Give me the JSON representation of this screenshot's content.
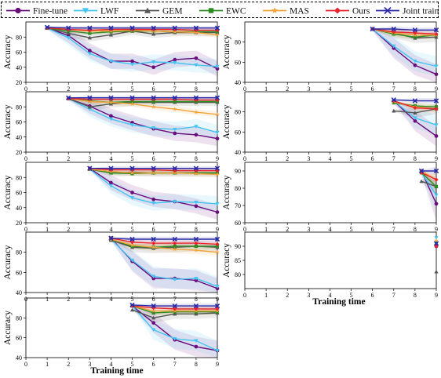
{
  "chart_data": {
    "type": "line",
    "legend": [
      {
        "name": "Fine-tune",
        "color": "#6a0c7c",
        "marker": "circle"
      },
      {
        "name": "LWF",
        "color": "#45c4f2",
        "marker": "triangle-down"
      },
      {
        "name": "GEM",
        "color": "#555555",
        "marker": "triangle-up"
      },
      {
        "name": "EWC",
        "color": "#2e8b22",
        "marker": "square"
      },
      {
        "name": "MAS",
        "color": "#f2a33a",
        "marker": "star"
      },
      {
        "name": "Ours",
        "color": "#e8232a",
        "marker": "diamond"
      },
      {
        "name": "Joint train",
        "color": "#2a2aa8",
        "marker": "x"
      }
    ],
    "xlabel": "Training time",
    "ylabel": "Accuracy",
    "xlim": [
      0,
      9
    ],
    "xticks": [
      0,
      1,
      2,
      3,
      4,
      5,
      6,
      7,
      8,
      9
    ],
    "panels": [
      {
        "ylim": [
          20,
          100
        ],
        "yticks": [
          20,
          40,
          60,
          80
        ],
        "x": [
          1,
          2,
          3,
          4,
          5,
          6,
          7,
          8,
          9
        ],
        "series": {
          "Fine-tune": [
            92,
            82,
            62,
            48,
            48,
            40,
            50,
            52,
            38
          ],
          "LWF": [
            92,
            79,
            58,
            48,
            44,
            47,
            46,
            43,
            41
          ],
          "GEM": [
            92,
            85,
            79,
            83,
            88,
            84,
            86,
            86,
            86
          ],
          "EWC": [
            92,
            88,
            85,
            87,
            88,
            88,
            87,
            87,
            87
          ],
          "MAS": [
            92,
            90,
            88,
            88,
            89,
            88,
            87,
            86,
            83
          ],
          "Ours": [
            92,
            90,
            89,
            90,
            90,
            90,
            90,
            89,
            89
          ],
          "Joint train": [
            93,
            92,
            92,
            92,
            92,
            92,
            92,
            92,
            92
          ]
        }
      },
      {
        "ylim": [
          40,
          100
        ],
        "yticks": [
          40,
          60,
          80
        ],
        "x": [
          6,
          7,
          8,
          9
        ],
        "series": {
          "Fine-tune": [
            93,
            74,
            57,
            48
          ],
          "LWF": [
            93,
            76,
            61,
            56
          ],
          "GEM": [
            93,
            89,
            84,
            85
          ],
          "EWC": [
            93,
            88,
            85,
            87
          ],
          "MAS": [
            93,
            89,
            87,
            87
          ],
          "Ours": [
            93,
            90,
            89,
            88
          ],
          "Joint train": [
            93,
            93,
            92,
            92
          ]
        }
      },
      {
        "ylim": [
          20,
          100
        ],
        "yticks": [
          20,
          40,
          60,
          80
        ],
        "x": [
          2,
          3,
          4,
          5,
          6,
          7,
          8,
          9
        ],
        "series": {
          "Fine-tune": [
            91,
            81,
            68,
            59,
            51,
            45,
            43,
            38
          ],
          "LWF": [
            91,
            77,
            64,
            56,
            52,
            50,
            54,
            46
          ],
          "GEM": [
            91,
            80,
            84,
            86,
            86,
            86,
            86,
            86
          ],
          "EWC": [
            91,
            88,
            86,
            87,
            87,
            87,
            87,
            87
          ],
          "MAS": [
            91,
            87,
            86,
            84,
            80,
            77,
            73,
            70
          ],
          "Ours": [
            91,
            90,
            90,
            90,
            90,
            90,
            89,
            89
          ],
          "Joint train": [
            92,
            92,
            92,
            92,
            92,
            92,
            92,
            92
          ]
        }
      },
      {
        "ylim": [
          40,
          100
        ],
        "yticks": [
          40,
          60,
          80
        ],
        "x": [
          7,
          8,
          9
        ],
        "series": {
          "Fine-tune": [
            91,
            71,
            56
          ],
          "LWF": [
            91,
            74,
            67
          ],
          "GEM": [
            81,
            79,
            83
          ],
          "EWC": [
            89,
            86,
            85
          ],
          "MAS": [
            90,
            85,
            83
          ],
          "Ours": [
            91,
            84,
            83
          ],
          "Joint train": [
            92,
            91,
            91
          ]
        }
      },
      {
        "ylim": [
          20,
          100
        ],
        "yticks": [
          20,
          40,
          60,
          80
        ],
        "x": [
          3,
          4,
          5,
          6,
          7,
          8,
          9
        ],
        "series": {
          "Fine-tune": [
            92,
            73,
            60,
            51,
            48,
            42,
            34
          ],
          "LWF": [
            91,
            69,
            53,
            46,
            48,
            47,
            45
          ],
          "GEM": [
            91,
            86,
            87,
            86,
            86,
            86,
            86
          ],
          "EWC": [
            91,
            86,
            85,
            86,
            86,
            86,
            86
          ],
          "MAS": [
            91,
            88,
            86,
            86,
            86,
            85,
            84
          ],
          "Ours": [
            92,
            90,
            90,
            90,
            89,
            89,
            89
          ],
          "Joint train": [
            92,
            92,
            92,
            92,
            92,
            92,
            92
          ]
        }
      },
      {
        "ylim": [
          60,
          95
        ],
        "yticks": [
          60,
          70,
          80,
          90
        ],
        "x": [
          8.3,
          9
        ],
        "series": {
          "Fine-tune": [
            90,
            71
          ],
          "LWF": [
            89,
            76
          ],
          "GEM": [
            84,
            81
          ],
          "EWC": [
            89,
            81
          ],
          "MAS": [
            90,
            85
          ],
          "Ours": [
            89,
            85
          ],
          "Joint train": [
            90,
            90
          ]
        }
      },
      {
        "ylim": [
          40,
          100
        ],
        "yticks": [
          40,
          60,
          80
        ],
        "x": [
          4,
          5,
          6,
          7,
          8,
          9
        ],
        "series": {
          "Fine-tune": [
            94,
            71,
            54,
            54,
            52,
            44
          ],
          "LWF": [
            93,
            72,
            56,
            53,
            54,
            46
          ],
          "GEM": [
            92,
            85,
            84,
            85,
            86,
            85
          ],
          "EWC": [
            93,
            86,
            85,
            86,
            86,
            86
          ],
          "MAS": [
            93,
            87,
            85,
            83,
            82,
            80
          ],
          "Ours": [
            94,
            90,
            89,
            89,
            89,
            88
          ],
          "Joint train": [
            94,
            93,
            93,
            93,
            93,
            93
          ]
        }
      },
      {
        "ylim": [
          75,
          95
        ],
        "yticks": [
          80,
          85,
          90
        ],
        "x": [
          9
        ],
        "series": {
          "Fine-tune": [
            90
          ],
          "LWF": [
            93
          ],
          "GEM": [
            81
          ],
          "EWC": [
            91
          ],
          "MAS": [
            92
          ],
          "Ours": [
            90
          ],
          "Joint train": [
            91
          ]
        }
      },
      {
        "ylim": [
          40,
          100
        ],
        "yticks": [
          40,
          60,
          80
        ],
        "x": [
          5,
          6,
          7,
          8,
          9
        ],
        "series": {
          "Fine-tune": [
            92,
            75,
            58,
            51,
            47
          ],
          "LWF": [
            92,
            68,
            59,
            57,
            47
          ],
          "GEM": [
            88,
            80,
            84,
            84,
            85
          ],
          "EWC": [
            92,
            85,
            86,
            86,
            86
          ],
          "MAS": [
            92,
            87,
            87,
            87,
            87
          ],
          "Ours": [
            92,
            90,
            89,
            89,
            89
          ],
          "Joint train": [
            93,
            92,
            92,
            92,
            92
          ]
        }
      }
    ]
  }
}
